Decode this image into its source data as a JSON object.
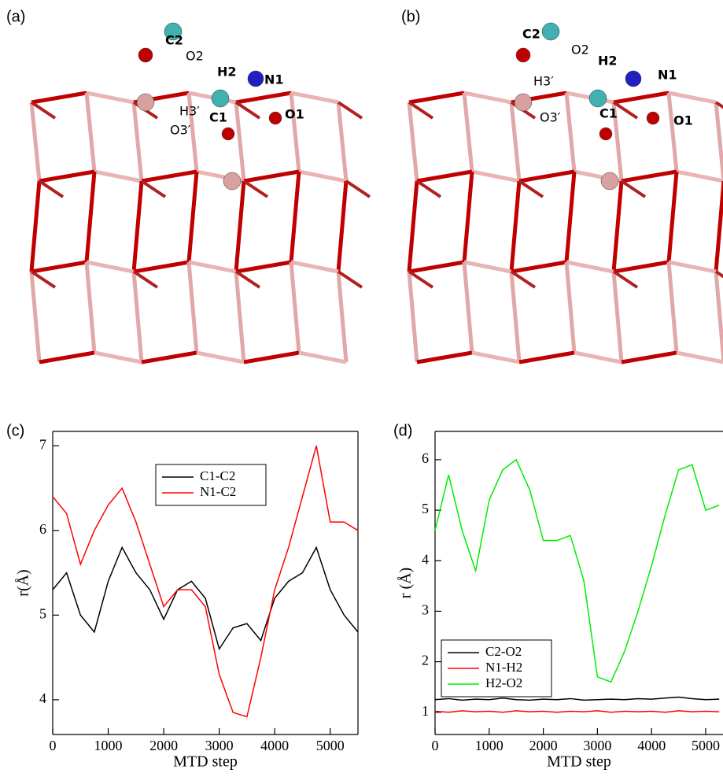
{
  "structures": [
    {
      "label": "(a)",
      "atoms": [
        "C2",
        "O2",
        "H2",
        "N1",
        "H3′",
        "O3′",
        "C1",
        "O1"
      ]
    },
    {
      "label": "(b)",
      "atoms": [
        "C2",
        "O2",
        "H2",
        "N1",
        "H3′",
        "O3′",
        "C1",
        "O1"
      ]
    }
  ],
  "chart_data": [
    {
      "type": "line",
      "label": "(c)",
      "xlabel": "MTD step",
      "ylabel": "r(Å)",
      "x": [
        0,
        250,
        500,
        750,
        1000,
        1250,
        1500,
        1750,
        2000,
        2250,
        2500,
        2750,
        3000,
        3250,
        3500,
        3750,
        4000,
        4250,
        4500,
        4750,
        5000,
        5250,
        5500
      ],
      "series": [
        {
          "name": "C1-C2",
          "color": "#000000",
          "values": [
            5.3,
            5.5,
            5.0,
            4.8,
            5.4,
            5.8,
            5.5,
            5.3,
            4.95,
            5.3,
            5.4,
            5.2,
            4.6,
            4.85,
            4.9,
            4.7,
            5.2,
            5.4,
            5.5,
            5.8,
            5.3,
            5.0,
            4.8
          ]
        },
        {
          "name": "N1-C2",
          "color": "#ff0000",
          "values": [
            6.4,
            6.2,
            5.6,
            6.0,
            6.3,
            6.5,
            6.1,
            5.6,
            5.1,
            5.3,
            5.3,
            5.1,
            4.3,
            3.85,
            3.8,
            4.5,
            5.3,
            5.8,
            6.4,
            7.0,
            6.1,
            6.1,
            6.0
          ]
        }
      ],
      "xlim": [
        0,
        5500
      ],
      "ylim": [
        3.59,
        7.17
      ],
      "xticks": [
        0,
        1000,
        2000,
        3000,
        4000,
        5000
      ],
      "yticks": [
        4,
        5,
        6,
        7
      ],
      "legend": "top"
    },
    {
      "type": "line",
      "label": "(d)",
      "xlabel": "MTD step",
      "ylabel": "r (Å)",
      "x": [
        0,
        250,
        500,
        750,
        1000,
        1250,
        1500,
        1750,
        2000,
        2250,
        2500,
        2750,
        3000,
        3250,
        3500,
        3750,
        4000,
        4250,
        4500,
        4750,
        5000,
        5250
      ],
      "series": [
        {
          "name": "C2-O2",
          "color": "#000000",
          "values": [
            1.25,
            1.27,
            1.24,
            1.26,
            1.25,
            1.28,
            1.25,
            1.24,
            1.26,
            1.25,
            1.27,
            1.24,
            1.25,
            1.26,
            1.25,
            1.27,
            1.26,
            1.28,
            1.3,
            1.27,
            1.25,
            1.26
          ]
        },
        {
          "name": "N1-H2",
          "color": "#ff0000",
          "values": [
            1.02,
            1.0,
            1.03,
            1.01,
            1.02,
            1.0,
            1.03,
            1.01,
            1.02,
            1.0,
            1.02,
            1.01,
            1.03,
            1.0,
            1.02,
            1.01,
            1.02,
            1.0,
            1.03,
            1.01,
            1.02,
            1.01
          ]
        },
        {
          "name": "H2-O2",
          "color": "#00ee00",
          "values": [
            4.6,
            5.7,
            4.6,
            3.8,
            5.2,
            5.8,
            6.0,
            5.4,
            4.4,
            4.4,
            4.5,
            3.6,
            1.7,
            1.6,
            2.2,
            3.0,
            3.9,
            4.9,
            5.8,
            5.9,
            5.0,
            5.1
          ]
        }
      ],
      "xlim": [
        0,
        5320
      ],
      "ylim": [
        0.56,
        6.56
      ],
      "xticks": [
        0,
        1000,
        2000,
        3000,
        4000,
        5000
      ],
      "yticks": [
        1,
        2,
        3,
        4,
        5,
        6
      ],
      "legend": "bottom-left"
    }
  ]
}
